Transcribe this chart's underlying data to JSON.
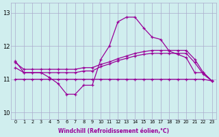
{
  "xlabel": "Windchill (Refroidissement éolien,°C)",
  "ylabel": "",
  "background_color": "#d0eeee",
  "line_color": "#990099",
  "grid_color": "#aaaacc",
  "xlim": [
    -0.5,
    23.5
  ],
  "ylim": [
    9.8,
    13.3
  ],
  "xticks": [
    0,
    1,
    2,
    3,
    4,
    5,
    6,
    7,
    8,
    9,
    10,
    11,
    12,
    13,
    14,
    15,
    16,
    17,
    18,
    19,
    20,
    21,
    22,
    23
  ],
  "yticks": [
    10,
    11,
    12,
    13
  ],
  "series": {
    "line_spiky": {
      "x": [
        0,
        1,
        2,
        3,
        4,
        5,
        6,
        7,
        8,
        9,
        10,
        11,
        12,
        13,
        14,
        15,
        16,
        17,
        18,
        19,
        20,
        21,
        22,
        23
      ],
      "y": [
        11.55,
        11.2,
        11.2,
        11.2,
        11.05,
        10.87,
        10.55,
        10.55,
        10.82,
        10.82,
        11.6,
        12.0,
        12.73,
        12.87,
        12.87,
        12.55,
        12.27,
        12.2,
        11.85,
        11.75,
        11.65,
        11.2,
        11.2,
        10.95
      ]
    },
    "line_upper": {
      "x": [
        0,
        1,
        2,
        3,
        4,
        5,
        6,
        7,
        8,
        9,
        10,
        11,
        12,
        13,
        14,
        15,
        16,
        17,
        18,
        19,
        20,
        21,
        22,
        23
      ],
      "y": [
        11.5,
        11.3,
        11.3,
        11.3,
        11.3,
        11.3,
        11.3,
        11.3,
        11.35,
        11.35,
        11.45,
        11.52,
        11.62,
        11.7,
        11.78,
        11.83,
        11.87,
        11.87,
        11.87,
        11.87,
        11.87,
        11.6,
        11.2,
        10.95
      ]
    },
    "line_lower": {
      "x": [
        0,
        1,
        2,
        3,
        4,
        5,
        6,
        7,
        8,
        9,
        10,
        11,
        12,
        13,
        14,
        15,
        16,
        17,
        18,
        19,
        20,
        21,
        22,
        23
      ],
      "y": [
        11.35,
        11.2,
        11.2,
        11.2,
        11.2,
        11.2,
        11.2,
        11.2,
        11.25,
        11.25,
        11.38,
        11.46,
        11.56,
        11.63,
        11.7,
        11.75,
        11.78,
        11.78,
        11.78,
        11.78,
        11.78,
        11.5,
        11.15,
        10.95
      ]
    },
    "line_flat": {
      "x": [
        0,
        1,
        2,
        3,
        4,
        5,
        6,
        7,
        8,
        9,
        10,
        11,
        12,
        13,
        14,
        15,
        16,
        17,
        18,
        19,
        20,
        21,
        22,
        23
      ],
      "y": [
        11.0,
        11.0,
        11.0,
        11.0,
        11.0,
        11.0,
        11.0,
        11.0,
        11.0,
        11.0,
        11.0,
        11.0,
        11.0,
        11.0,
        11.0,
        11.0,
        11.0,
        11.0,
        11.0,
        11.0,
        11.0,
        11.0,
        11.0,
        10.95
      ]
    }
  }
}
